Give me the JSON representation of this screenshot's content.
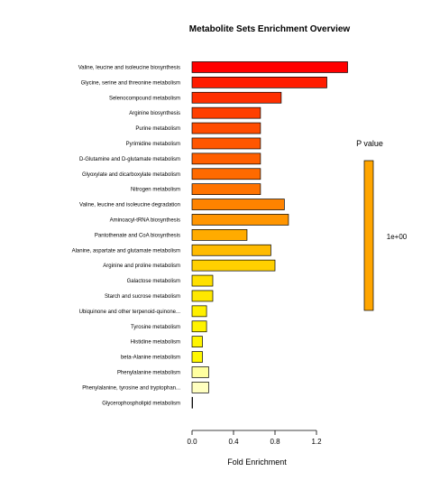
{
  "chart_data": {
    "type": "bar",
    "orientation": "horizontal",
    "title": "Metabolite Sets Enrichment Overview",
    "xlabel": "Fold Enrichment",
    "ylabel": "",
    "xlim": [
      0,
      1.45
    ],
    "xticks": [
      "0.0",
      "0.4",
      "0.8",
      "1.2"
    ],
    "xtick_values": [
      0,
      0.4,
      0.8,
      1.2
    ],
    "grid": false,
    "categories": [
      "Valine, leucine and isoleucine biosynthesis",
      "Glycine, serine and threonine metabolism",
      "Selenocompound metabolism",
      "Arginine biosynthesis",
      "Purine metabolism",
      "Pyrimidine metabolism",
      "D-Glutamine and D-glutamate metabolism",
      "Glyoxylate and dicarboxylate metabolism",
      "Nitrogen metabolism",
      "Valine, leucine and isoleucine degradation",
      "Aminoacyl-tRNA biosynthesis",
      "Pantothenate and CoA biosynthesis",
      "Alanine, aspartate and glutamate metabolism",
      "Arginine and proline metabolism",
      "Galactose metabolism",
      "Starch and sucrose metabolism",
      "Ubiquinone and other terpenoid-quinone...",
      "Tyrosine metabolism",
      "Histidine metabolism",
      "beta-Alanine metabolism",
      "Phenylalanine metabolism",
      "Phenylalanine, tyrosine and tryptophan...",
      "Glycerophospholipid metabolism"
    ],
    "values": [
      1.5,
      1.3,
      0.86,
      0.66,
      0.66,
      0.66,
      0.66,
      0.66,
      0.66,
      0.89,
      0.93,
      0.53,
      0.76,
      0.8,
      0.2,
      0.2,
      0.14,
      0.14,
      0.1,
      0.1,
      0.16,
      0.16,
      0.005
    ],
    "colors": [
      "#ff0000",
      "#ff1c00",
      "#ff2f00",
      "#ff3f00",
      "#ff4c00",
      "#ff5600",
      "#ff5f00",
      "#ff6a00",
      "#ff7300",
      "#ff8300",
      "#ff9500",
      "#ffab00",
      "#ffbb00",
      "#ffd000",
      "#ffe000",
      "#ffe800",
      "#fff000",
      "#fff300",
      "#fff500",
      "#fff800",
      "#ffffa0",
      "#ffffc0",
      "#ffffe0"
    ],
    "legend": {
      "title": "P value",
      "label": "1e+00",
      "color": "#ffa500",
      "placement": "right"
    }
  }
}
